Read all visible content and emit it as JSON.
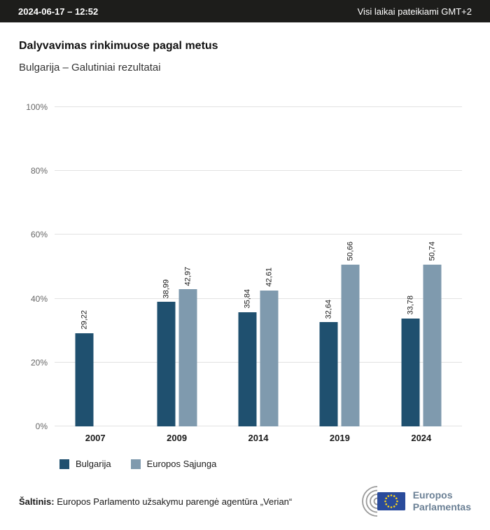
{
  "header": {
    "datetime": "2024-06-17 – 12:52",
    "timezone_note": "Visi laikai pateikiami GMT+2"
  },
  "title": "Dalyvavimas rinkimuose pagal metus",
  "subtitle": "Bulgarija – Galutiniai rezultatai",
  "chart_data": {
    "type": "bar",
    "title": "Dalyvavimas rinkimuose pagal metus",
    "subtitle": "Bulgarija – Galutiniai rezultatai",
    "categories": [
      "2007",
      "2009",
      "2014",
      "2019",
      "2024"
    ],
    "series": [
      {
        "name": "Bulgarija",
        "color": "#1f506f",
        "values": [
          29.22,
          38.99,
          35.84,
          32.64,
          33.78
        ],
        "labels": [
          "29,22",
          "38,99",
          "35,84",
          "32,64",
          "33,78"
        ]
      },
      {
        "name": "Europos Sąjunga",
        "color": "#7f9aae",
        "values": [
          null,
          42.97,
          42.61,
          50.66,
          50.74
        ],
        "labels": [
          null,
          "42,97",
          "42,61",
          "50,66",
          "50,74"
        ]
      }
    ],
    "ylim": [
      0,
      100
    ],
    "yticks": [
      0,
      20,
      40,
      60,
      80,
      100
    ],
    "ytick_labels": [
      "0%",
      "20%",
      "40%",
      "60%",
      "80%",
      "100%"
    ],
    "grid": true,
    "legend_position": "bottom",
    "value_label_rotation": 90
  },
  "footer": {
    "source_label": "Šaltinis:",
    "source_text": "Europos Parlamento užsakymu parengė agentūra „Verian“",
    "logo_line1": "Europos",
    "logo_line2": "Parlamentas"
  },
  "colors": {
    "topbar_bg": "#1d1d1b",
    "bulgarija_bar": "#1f506f",
    "eu_bar": "#7f9aae",
    "eu_flag_blue": "#2a4b9b",
    "eu_star_yellow": "#ffd617"
  }
}
